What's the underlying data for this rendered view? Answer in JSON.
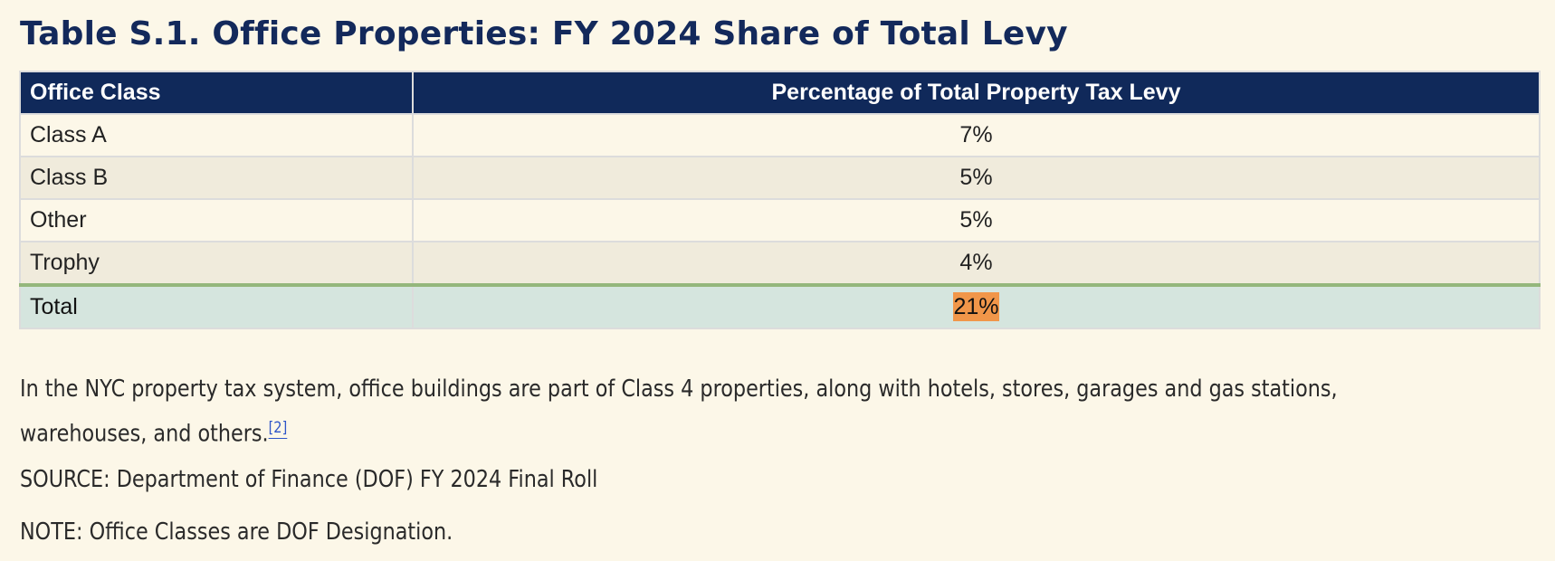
{
  "title": "Table S.1. Office Properties: FY 2024 Share of Total Levy",
  "table": {
    "headers": [
      "Office Class",
      "Percentage of Total Property Tax Levy"
    ],
    "rows": [
      {
        "office_class": "Class A",
        "percentage": "7%"
      },
      {
        "office_class": "Class B",
        "percentage": "5%"
      },
      {
        "office_class": "Other",
        "percentage": "5%"
      },
      {
        "office_class": "Trophy",
        "percentage": "4%"
      }
    ],
    "total": {
      "office_class": "Total",
      "percentage": "21%"
    }
  },
  "paragraph": {
    "line1": "In the NYC property tax system, office buildings are part of Class 4 properties, along with hotels, stores, garages and gas stations,",
    "line2": "warehouses, and others.",
    "footnote_link": "[2]"
  },
  "source": "SOURCE: Department of Finance (DOF) FY 2024 Final Roll",
  "note": "NOTE: Office Classes are DOF Designation.",
  "colors": {
    "header_bg": "#10295a",
    "total_highlight": "#f19649",
    "total_row_bg": "#d5e5de",
    "total_border": "#94b77c"
  }
}
